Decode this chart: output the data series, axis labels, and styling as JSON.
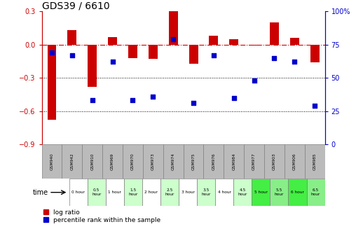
{
  "title": "GDS39 / 6610",
  "samples": [
    "GSM940",
    "GSM942",
    "GSM910",
    "GSM969",
    "GSM970",
    "GSM973",
    "GSM974",
    "GSM975",
    "GSM976",
    "GSM984",
    "GSM977",
    "GSM903",
    "GSM906",
    "GSM985"
  ],
  "time_labels": [
    "0 hour",
    "0.5\nhour",
    "1 hour",
    "1.5\nhour",
    "2 hour",
    "2.5\nhour",
    "3 hour",
    "3.5\nhour",
    "4 hour",
    "4.5\nhour",
    "5 hour",
    "5.5\nhour",
    "6 hour",
    "6.5\nhour"
  ],
  "log_ratio": [
    -0.68,
    0.13,
    -0.38,
    0.07,
    -0.12,
    -0.13,
    0.3,
    -0.17,
    0.08,
    0.05,
    -0.01,
    0.2,
    0.06,
    -0.16
  ],
  "percentile": [
    69,
    67,
    33,
    62,
    33,
    36,
    79,
    31,
    67,
    35,
    48,
    65,
    62,
    29
  ],
  "ylim_left": [
    -0.9,
    0.3
  ],
  "ylim_right": [
    0,
    100
  ],
  "yticks_left": [
    -0.9,
    -0.6,
    -0.3,
    0.0,
    0.3
  ],
  "yticks_right": [
    0,
    25,
    50,
    75,
    100
  ],
  "bar_color": "#cc0000",
  "dot_color": "#0000cc",
  "hline_color": "#cc0000",
  "dotline_color": "#000000",
  "title_fontsize": 10,
  "time_bg_colors": [
    "#ffffff",
    "#ccffcc",
    "#ffffff",
    "#ccffcc",
    "#ffffff",
    "#ccffcc",
    "#ffffff",
    "#ccffcc",
    "#ffffff",
    "#ccffcc",
    "#44ee44",
    "#88ee88",
    "#44ee44",
    "#88ee88"
  ],
  "sample_bg_color": "#bbbbbb",
  "legend_red": "log ratio",
  "legend_blue": "percentile rank within the sample"
}
